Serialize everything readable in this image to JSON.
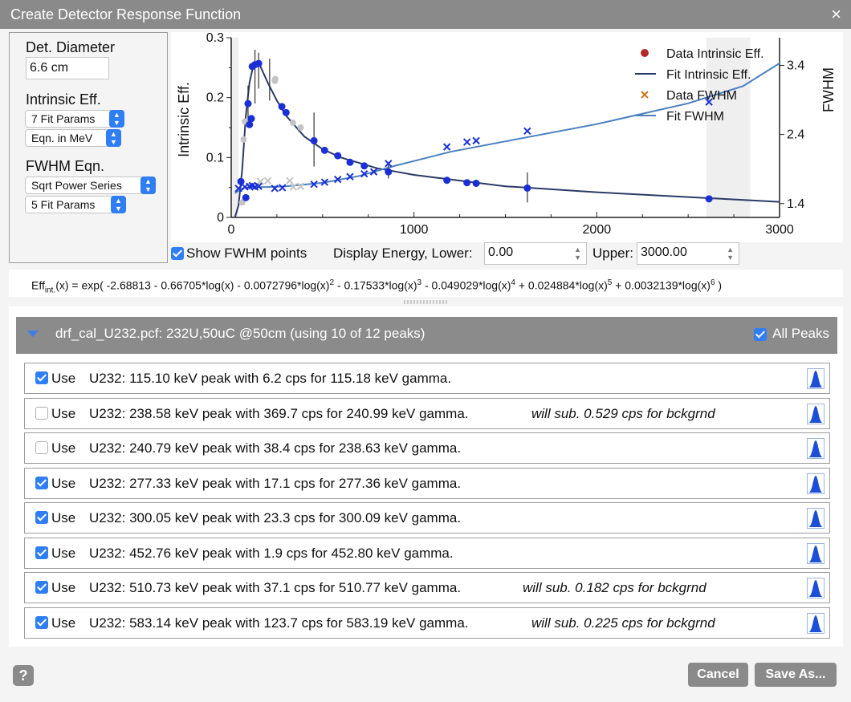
{
  "window": {
    "title": "Create Detector Response Function",
    "close_icon": "close-icon",
    "close_glyph": "×"
  },
  "left_panel": {
    "det_diameter_label": "Det. Diameter",
    "det_diameter_value": "6.6 cm",
    "intrinsic_label": "Intrinsic Eff.",
    "intrinsic_params": "7 Fit Params",
    "intrinsic_units": "Eqn. in MeV",
    "fwhm_label": "FWHM Eqn.",
    "fwhm_form": "Sqrt Power Series",
    "fwhm_params": "5 Fit Params"
  },
  "controls": {
    "show_fwhm_label": "Show FWHM points",
    "show_fwhm_checked": true,
    "lower_label": "Display Energy, Lower:",
    "lower_value": "0.00",
    "upper_label": "Upper:",
    "upper_value": "3000.00"
  },
  "equation": {
    "lead": "Eff",
    "lead_sub": "int.",
    "text_1": "(x) = exp( -2.68813 - 0.66705*log(x) - 0.0072796*log(x)",
    "text_2": " - 0.17533*log(x)",
    "text_3": " - 0.049029*log(x)",
    "text_4": " + 0.024884*log(x)",
    "text_5": " + 0.0032139*log(x)",
    "text_6": " )",
    "exponents": [
      "2",
      "3",
      "4",
      "5",
      "6"
    ]
  },
  "file": {
    "title": "drf_cal_U232.pcf: 232U,50uC @50cm (using 10 of 12 peaks)",
    "all_peaks_label": "All Peaks",
    "all_peaks_checked": true
  },
  "use_label": "Use",
  "peaks": [
    {
      "checked": true,
      "desc": "U232: 115.10 keV peak with 6.2 cps for 115.18 keV gamma.",
      "note": ""
    },
    {
      "checked": false,
      "desc": "U232: 238.58 keV peak with 369.7 cps for 240.99 keV gamma.",
      "note": "will sub. 0.529 cps for bckgrnd"
    },
    {
      "checked": false,
      "desc": "U232: 240.79 keV peak with 38.4 cps for 238.63 keV gamma.",
      "note": ""
    },
    {
      "checked": true,
      "desc": "U232: 277.33 keV peak with 17.1 cps for 277.36 keV gamma.",
      "note": ""
    },
    {
      "checked": true,
      "desc": "U232: 300.05 keV peak with 23.3 cps for 300.09 keV gamma.",
      "note": ""
    },
    {
      "checked": true,
      "desc": "U232: 452.76 keV peak with 1.9 cps for 452.80 keV gamma.",
      "note": ""
    },
    {
      "checked": true,
      "desc": "U232: 510.73 keV peak with 37.1 cps for 510.77 keV gamma.",
      "note": "will sub. 0.182 cps for bckgrnd"
    },
    {
      "checked": true,
      "desc": "U232: 583.14 keV peak with 123.7 cps for 583.19 keV gamma.",
      "note": "will sub. 0.225 cps for bckgrnd"
    }
  ],
  "buttons": {
    "help": "?",
    "cancel": "Cancel",
    "save_as": "Save As..."
  },
  "colors": {
    "eff_data": "#1a2fd6",
    "eff_fit": "#2a3a66",
    "fwhm_data": "#1a2fd6",
    "fwhm_fit": "#4a7fc0",
    "excluded": "#c4c4c4",
    "legend_eff_marker": "#b02a2a",
    "legend_fwhm_marker": "#d2751f",
    "accent": "#2f7ef5"
  },
  "chart_data": {
    "type": "scatter",
    "x_ticks": [
      "0",
      "1000",
      "2000",
      "3000"
    ],
    "y_left_label": "Intrinsic Eff.",
    "y_left_ticks": [
      "0",
      "0.1",
      "0.2",
      "0.3"
    ],
    "y_right_label": "FWHM",
    "y_right_ticks": [
      "1.4",
      "2.4",
      "3.4"
    ],
    "xlim": [
      0,
      3000
    ],
    "ylim_left": [
      0,
      0.3
    ],
    "ylim_right": [
      1.2,
      3.8
    ],
    "legend": [
      "Data Intrinsic Eff.",
      "Fit Intrinsic Eff.",
      "Data FWHM",
      "Fit FWHM"
    ],
    "legend_position": "top-right",
    "eff_points_used": [
      {
        "x": 53,
        "y": 0.06
      },
      {
        "x": 80,
        "y": 0.033
      },
      {
        "x": 92,
        "y": 0.19
      },
      {
        "x": 100,
        "y": 0.155
      },
      {
        "x": 110,
        "y": 0.165
      },
      {
        "x": 115,
        "y": 0.252
      },
      {
        "x": 130,
        "y": 0.255
      },
      {
        "x": 150,
        "y": 0.257
      },
      {
        "x": 277,
        "y": 0.185
      },
      {
        "x": 300,
        "y": 0.175
      },
      {
        "x": 453,
        "y": 0.128
      },
      {
        "x": 511,
        "y": 0.112
      },
      {
        "x": 583,
        "y": 0.103
      },
      {
        "x": 650,
        "y": 0.092
      },
      {
        "x": 728,
        "y": 0.086
      },
      {
        "x": 860,
        "y": 0.076
      },
      {
        "x": 1180,
        "y": 0.062
      },
      {
        "x": 1290,
        "y": 0.058
      },
      {
        "x": 1340,
        "y": 0.057
      },
      {
        "x": 1620,
        "y": 0.049
      },
      {
        "x": 2614,
        "y": 0.031
      }
    ],
    "eff_points_excluded": [
      {
        "x": 60,
        "y": 0.025
      },
      {
        "x": 68,
        "y": 0.13
      },
      {
        "x": 75,
        "y": 0.16
      },
      {
        "x": 239,
        "y": 0.228
      },
      {
        "x": 241,
        "y": 0.231
      },
      {
        "x": 338,
        "y": 0.158
      },
      {
        "x": 380,
        "y": 0.15
      }
    ],
    "eff_errorbars": [
      {
        "x": 92,
        "lo": 0.16,
        "hi": 0.22
      },
      {
        "x": 130,
        "lo": 0.19,
        "hi": 0.28
      },
      {
        "x": 150,
        "lo": 0.215,
        "hi": 0.275
      },
      {
        "x": 210,
        "lo": 0.195,
        "hi": 0.265
      },
      {
        "x": 453,
        "lo": 0.085,
        "hi": 0.175
      },
      {
        "x": 860,
        "lo": 0.065,
        "hi": 0.09
      },
      {
        "x": 1620,
        "lo": 0.025,
        "hi": 0.075
      }
    ],
    "fwhm_points_used": [
      {
        "x": 40,
        "y": 1.62
      },
      {
        "x": 75,
        "y": 1.64
      },
      {
        "x": 100,
        "y": 1.65
      },
      {
        "x": 115,
        "y": 1.66
      },
      {
        "x": 130,
        "y": 1.64
      },
      {
        "x": 150,
        "y": 1.65
      },
      {
        "x": 238,
        "y": 1.62
      },
      {
        "x": 280,
        "y": 1.63
      },
      {
        "x": 453,
        "y": 1.68
      },
      {
        "x": 511,
        "y": 1.71
      },
      {
        "x": 583,
        "y": 1.75
      },
      {
        "x": 650,
        "y": 1.79
      },
      {
        "x": 728,
        "y": 1.83
      },
      {
        "x": 780,
        "y": 1.86
      },
      {
        "x": 860,
        "y": 1.98
      },
      {
        "x": 1180,
        "y": 2.22
      },
      {
        "x": 1290,
        "y": 2.29
      },
      {
        "x": 1340,
        "y": 2.31
      },
      {
        "x": 1620,
        "y": 2.45
      },
      {
        "x": 2614,
        "y": 2.87
      }
    ],
    "fwhm_points_excluded": [
      {
        "x": 160,
        "y": 1.72
      },
      {
        "x": 200,
        "y": 1.73
      },
      {
        "x": 320,
        "y": 1.73
      },
      {
        "x": 340,
        "y": 1.64
      },
      {
        "x": 380,
        "y": 1.65
      }
    ],
    "eff_fit_x": [
      20,
      40,
      60,
      80,
      100,
      120,
      140,
      160,
      200,
      250,
      300,
      400,
      500,
      600,
      800,
      1000,
      1500,
      2000,
      2500,
      3000
    ],
    "eff_fit_y": [
      0.0,
      0.02,
      0.08,
      0.17,
      0.225,
      0.252,
      0.258,
      0.252,
      0.225,
      0.195,
      0.17,
      0.135,
      0.114,
      0.1,
      0.082,
      0.071,
      0.052,
      0.042,
      0.034,
      0.026
    ],
    "fwhm_fit_x": [
      20,
      60,
      100,
      200,
      300,
      500,
      700,
      900,
      1200,
      1500,
      2000,
      2500,
      2800,
      3000
    ],
    "fwhm_fit_y": [
      1.55,
      1.62,
      1.64,
      1.64,
      1.65,
      1.7,
      1.8,
      1.95,
      2.15,
      2.3,
      2.55,
      2.85,
      3.1,
      3.43
    ]
  }
}
